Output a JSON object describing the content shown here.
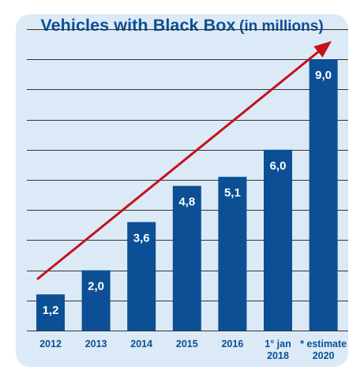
{
  "chart_data": {
    "type": "bar",
    "title": "Vehicles with Black Box",
    "title_unit": "(in millions)",
    "categories": [
      [
        "2012"
      ],
      [
        "2013"
      ],
      [
        "2014"
      ],
      [
        "2015"
      ],
      [
        "2016"
      ],
      [
        "1° jan",
        "2018"
      ],
      [
        "* estimate",
        "2020"
      ]
    ],
    "values": [
      1.2,
      2.0,
      3.6,
      4.8,
      5.1,
      6.0,
      9.0
    ],
    "value_labels": [
      "1,2",
      "2,0",
      "3,6",
      "4,8",
      "5,1",
      "6,0",
      "9,0"
    ],
    "ylim": [
      0,
      10
    ],
    "grid": true,
    "trend_arrow": true,
    "colors": {
      "bar": "#0c4f95",
      "arrow": "#c4121c",
      "panel": "#dbeaf6",
      "text": "#0c4f95"
    }
  }
}
